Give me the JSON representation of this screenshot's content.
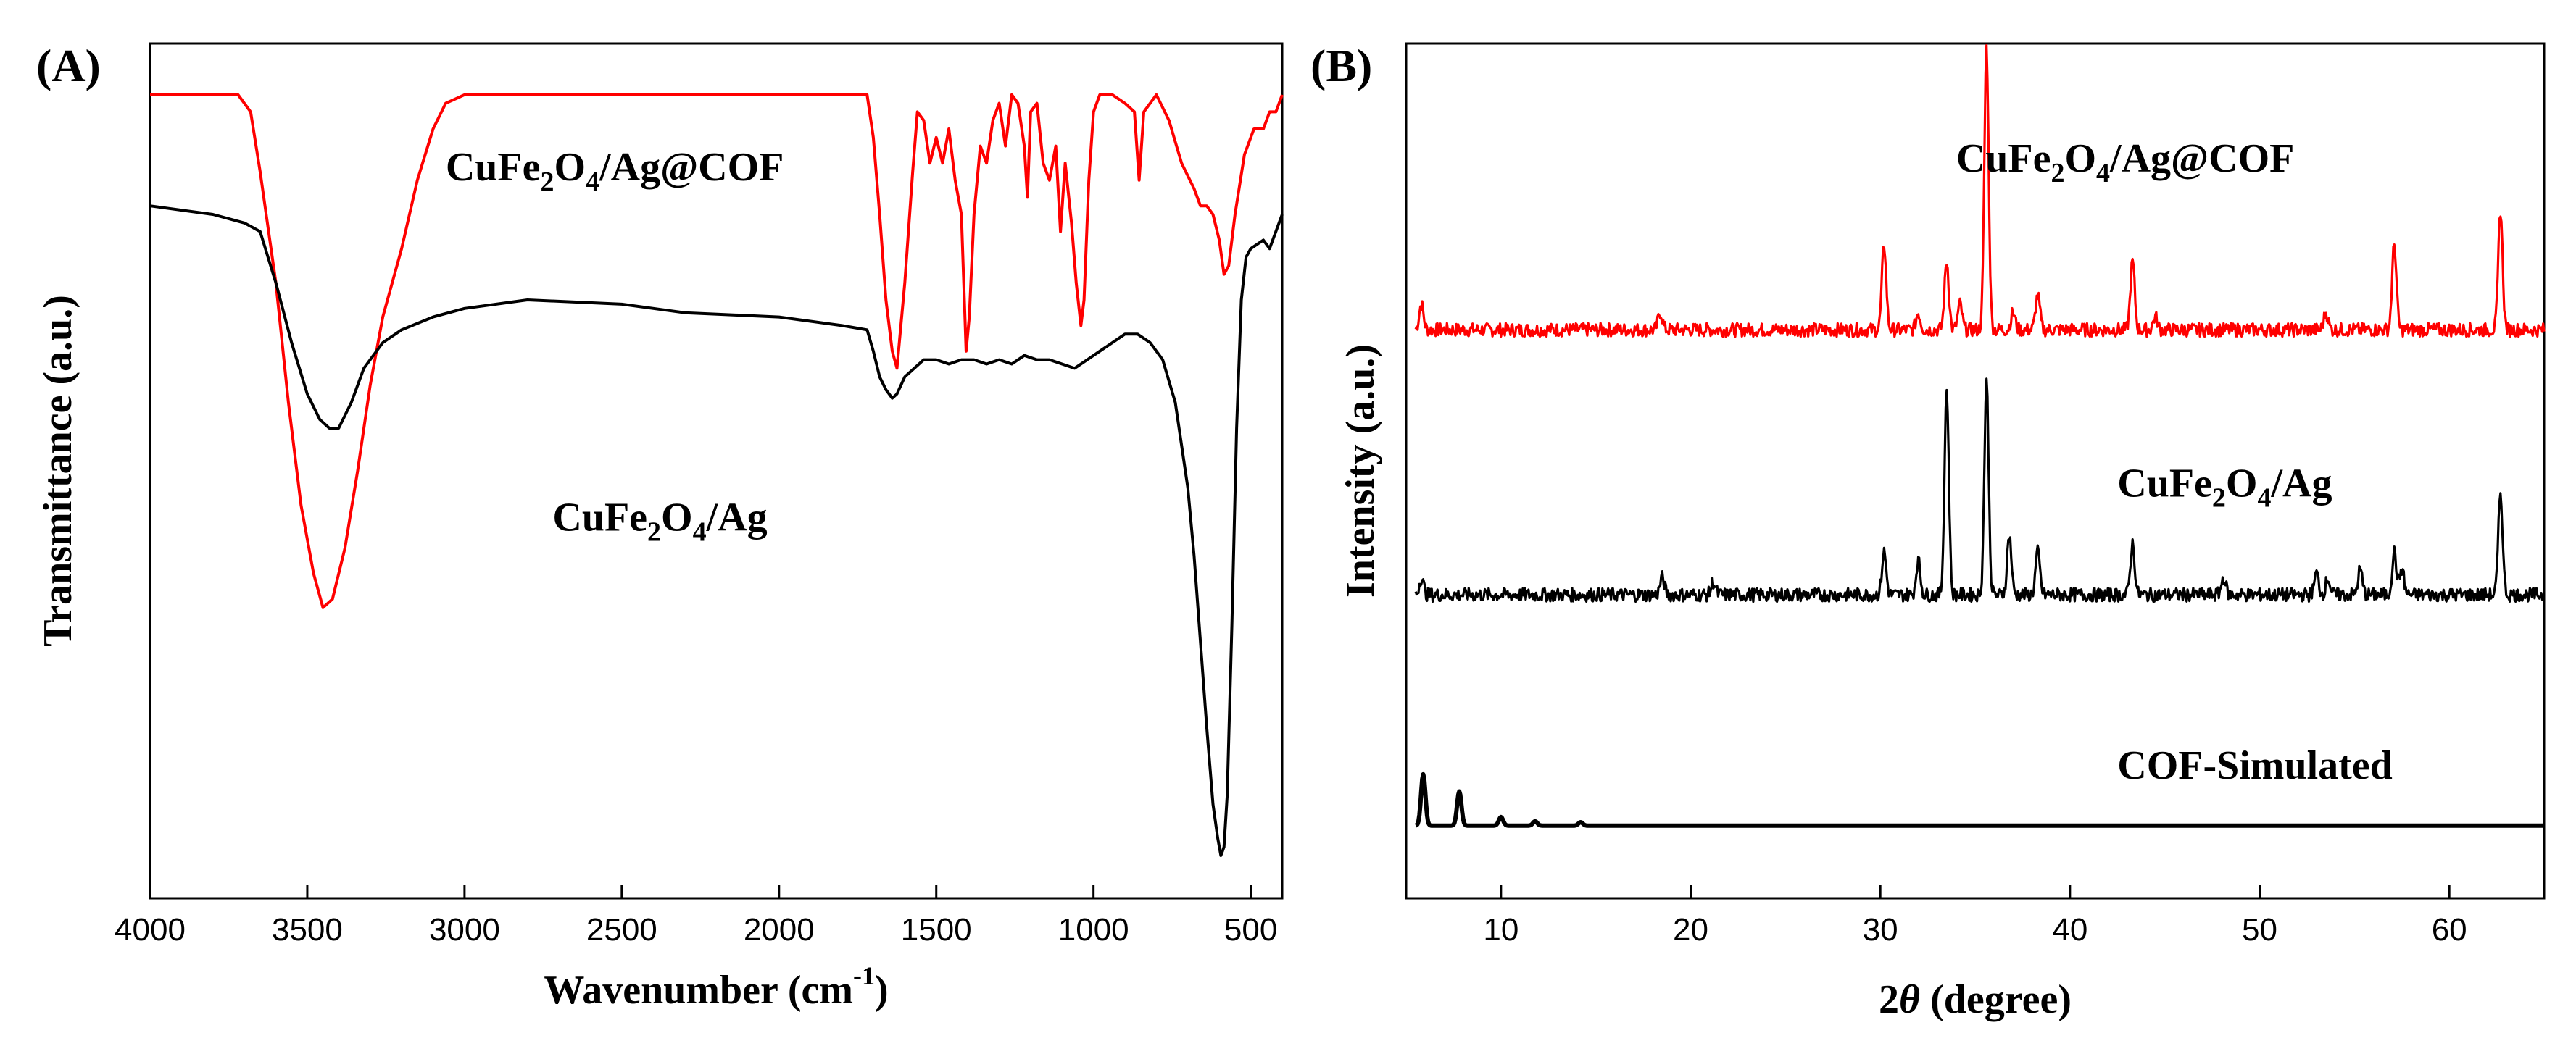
{
  "colors": {
    "red": "#ff0000",
    "black": "#000000",
    "axis": "#000000"
  },
  "chart_data": [
    {
      "panel_label": "(A)",
      "type": "line",
      "title": "",
      "xlabel": {
        "pre": "Wavenumber (cm",
        "sup": "-1",
        "post": ")"
      },
      "ylabel": "Transmittance (a.u.)",
      "xlim": [
        4000,
        400
      ],
      "ylim": [
        0,
        100
      ],
      "x_ticks": [
        4000,
        3500,
        3000,
        2500,
        2000,
        1500,
        1000,
        500
      ],
      "x_tick_labels": [
        "4000",
        "3500",
        "3000",
        "2500",
        "2000",
        "1500",
        "1000",
        "500"
      ],
      "annotations": [
        {
          "base": "CuFe",
          "sub1": "2",
          "mid": "O",
          "sub2": "4",
          "tail": "/Ag@COF",
          "x": 3060,
          "y": 84,
          "anchor": "start"
        },
        {
          "base": "CuFe",
          "sub1": "2",
          "mid": "O",
          "sub2": "4",
          "tail": "/Ag",
          "x": 2720,
          "y": 43,
          "anchor": "start"
        }
      ],
      "series": [
        {
          "name": "CuFe2O4/Ag@COF",
          "color": "#ff0000",
          "points": [
            [
              4000,
              94
            ],
            [
              3800,
              94
            ],
            [
              3720,
              94
            ],
            [
              3680,
              92
            ],
            [
              3650,
              85
            ],
            [
              3600,
              72
            ],
            [
              3560,
              58
            ],
            [
              3520,
              46
            ],
            [
              3480,
              38
            ],
            [
              3450,
              34
            ],
            [
              3420,
              35
            ],
            [
              3380,
              41
            ],
            [
              3340,
              50
            ],
            [
              3300,
              60
            ],
            [
              3260,
              68
            ],
            [
              3200,
              76
            ],
            [
              3150,
              84
            ],
            [
              3100,
              90
            ],
            [
              3060,
              93
            ],
            [
              3000,
              94
            ],
            [
              2500,
              94
            ],
            [
              2000,
              94
            ],
            [
              1760,
              94
            ],
            [
              1720,
              94
            ],
            [
              1700,
              89
            ],
            [
              1680,
              80
            ],
            [
              1660,
              70
            ],
            [
              1640,
              64
            ],
            [
              1625,
              62
            ],
            [
              1600,
              72
            ],
            [
              1575,
              85
            ],
            [
              1560,
              92
            ],
            [
              1540,
              91
            ],
            [
              1520,
              86
            ],
            [
              1500,
              89
            ],
            [
              1480,
              86
            ],
            [
              1460,
              90
            ],
            [
              1440,
              84
            ],
            [
              1420,
              80
            ],
            [
              1405,
              64
            ],
            [
              1395,
              68
            ],
            [
              1380,
              80
            ],
            [
              1360,
              88
            ],
            [
              1340,
              86
            ],
            [
              1320,
              91
            ],
            [
              1300,
              93
            ],
            [
              1280,
              88
            ],
            [
              1260,
              94
            ],
            [
              1240,
              93
            ],
            [
              1220,
              88
            ],
            [
              1210,
              82
            ],
            [
              1200,
              92
            ],
            [
              1180,
              93
            ],
            [
              1160,
              86
            ],
            [
              1140,
              84
            ],
            [
              1120,
              88
            ],
            [
              1105,
              78
            ],
            [
              1090,
              86
            ],
            [
              1070,
              79
            ],
            [
              1055,
              72
            ],
            [
              1040,
              67
            ],
            [
              1030,
              70
            ],
            [
              1015,
              84
            ],
            [
              1000,
              92
            ],
            [
              980,
              94
            ],
            [
              940,
              94
            ],
            [
              900,
              93
            ],
            [
              870,
              92
            ],
            [
              855,
              84
            ],
            [
              840,
              92
            ],
            [
              820,
              93
            ],
            [
              800,
              94
            ],
            [
              760,
              91
            ],
            [
              720,
              86
            ],
            [
              680,
              83
            ],
            [
              660,
              81
            ],
            [
              640,
              81
            ],
            [
              620,
              80
            ],
            [
              600,
              77
            ],
            [
              585,
              73
            ],
            [
              570,
              74
            ],
            [
              550,
              80
            ],
            [
              520,
              87
            ],
            [
              490,
              90
            ],
            [
              460,
              90
            ],
            [
              440,
              92
            ],
            [
              420,
              92
            ],
            [
              400,
              94
            ]
          ]
        },
        {
          "name": "CuFe2O4/Ag",
          "color": "#000000",
          "points": [
            [
              4000,
              81
            ],
            [
              3800,
              80
            ],
            [
              3700,
              79
            ],
            [
              3650,
              78
            ],
            [
              3600,
              72
            ],
            [
              3550,
              65
            ],
            [
              3500,
              59
            ],
            [
              3460,
              56
            ],
            [
              3430,
              55
            ],
            [
              3400,
              55
            ],
            [
              3360,
              58
            ],
            [
              3320,
              62
            ],
            [
              3260,
              65
            ],
            [
              3200,
              66.5
            ],
            [
              3100,
              68
            ],
            [
              3000,
              69
            ],
            [
              2800,
              70
            ],
            [
              2500,
              69.5
            ],
            [
              2300,
              68.5
            ],
            [
              2000,
              68
            ],
            [
              1800,
              67
            ],
            [
              1720,
              66.5
            ],
            [
              1700,
              64
            ],
            [
              1680,
              61
            ],
            [
              1660,
              59.5
            ],
            [
              1640,
              58.5
            ],
            [
              1625,
              59
            ],
            [
              1600,
              61
            ],
            [
              1570,
              62
            ],
            [
              1540,
              63
            ],
            [
              1500,
              63
            ],
            [
              1460,
              62.5
            ],
            [
              1420,
              63
            ],
            [
              1380,
              63
            ],
            [
              1340,
              62.5
            ],
            [
              1300,
              63
            ],
            [
              1260,
              62.5
            ],
            [
              1220,
              63.5
            ],
            [
              1180,
              63
            ],
            [
              1140,
              63
            ],
            [
              1100,
              62.5
            ],
            [
              1060,
              62
            ],
            [
              1020,
              63
            ],
            [
              980,
              64
            ],
            [
              940,
              65
            ],
            [
              900,
              66
            ],
            [
              860,
              66
            ],
            [
              820,
              65
            ],
            [
              780,
              63
            ],
            [
              740,
              58
            ],
            [
              700,
              48
            ],
            [
              680,
              40
            ],
            [
              660,
              30
            ],
            [
              640,
              20
            ],
            [
              620,
              11
            ],
            [
              605,
              7
            ],
            [
              595,
              5
            ],
            [
              585,
              6
            ],
            [
              575,
              12
            ],
            [
              560,
              32
            ],
            [
              545,
              55
            ],
            [
              530,
              70
            ],
            [
              515,
              75
            ],
            [
              500,
              76
            ],
            [
              480,
              76.5
            ],
            [
              460,
              77
            ],
            [
              440,
              76
            ],
            [
              420,
              78
            ],
            [
              400,
              80
            ]
          ]
        }
      ]
    },
    {
      "panel_label": "(B)",
      "type": "line",
      "title": "",
      "xlabel": {
        "pre": "2",
        "theta": "θ",
        "post": " (degree)"
      },
      "ylabel": "Intensity (a.u.)",
      "xlim": [
        5,
        65
      ],
      "ylim": [
        0,
        100
      ],
      "x_ticks": [
        10,
        20,
        30,
        40,
        50,
        60
      ],
      "x_tick_labels": [
        "10",
        "20",
        "30",
        "40",
        "50",
        "60"
      ],
      "annotations": [
        {
          "base": "CuFe",
          "sub1": "2",
          "mid": "O",
          "sub2": "4",
          "tail": "/Ag@COF",
          "x": 34,
          "y": 85,
          "anchor": "start"
        },
        {
          "base": "CuFe",
          "sub1": "2",
          "mid": "O",
          "sub2": "4",
          "tail": "/Ag",
          "x": 42.5,
          "y": 47,
          "anchor": "start"
        },
        {
          "plain": "COF-Simulated",
          "x": 42.5,
          "y": 14,
          "anchor": "start"
        }
      ],
      "series": [
        {
          "name": "CuFe2O4/Ag@COF",
          "color": "#ff0000",
          "baseline": 66.5,
          "peaks": [
            [
              5.8,
              3
            ],
            [
              18.4,
              2
            ],
            [
              30.2,
              10
            ],
            [
              32.0,
              2
            ],
            [
              33.5,
              8
            ],
            [
              34.2,
              3
            ],
            [
              35.6,
              33
            ],
            [
              37.0,
              2
            ],
            [
              38.3,
              4
            ],
            [
              43.3,
              8
            ],
            [
              44.5,
              1.5
            ],
            [
              53.5,
              2
            ],
            [
              57.1,
              10
            ],
            [
              62.7,
              14
            ]
          ]
        },
        {
          "name": "CuFe2O4/Ag",
          "color": "#000000",
          "baseline": 35.5,
          "peaks": [
            [
              5.8,
              2
            ],
            [
              18.5,
              2
            ],
            [
              21.2,
              1.5
            ],
            [
              30.2,
              5
            ],
            [
              32.0,
              4
            ],
            [
              33.5,
              24
            ],
            [
              35.6,
              25
            ],
            [
              36.8,
              7
            ],
            [
              38.3,
              5
            ],
            [
              43.3,
              6
            ],
            [
              48.1,
              2
            ],
            [
              53.0,
              2.5
            ],
            [
              53.6,
              2
            ],
            [
              55.3,
              3
            ],
            [
              57.1,
              5
            ],
            [
              57.5,
              3
            ],
            [
              62.7,
              12
            ]
          ]
        },
        {
          "name": "COF-Simulated",
          "color": "#000000",
          "baseline": 8.5,
          "peaks": [
            [
              5.9,
              6
            ],
            [
              7.8,
              4
            ],
            [
              10.0,
              1
            ],
            [
              11.8,
              0.5
            ],
            [
              14.2,
              0.4
            ]
          ]
        }
      ]
    }
  ]
}
